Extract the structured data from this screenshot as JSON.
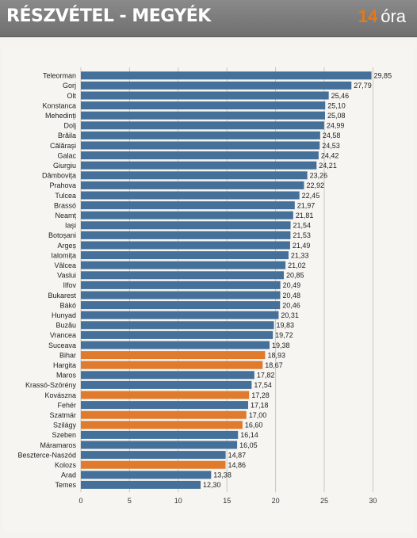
{
  "header": {
    "title": "RÉSZVÉTEL - MEGYÉK",
    "time_value": "14",
    "time_unit": "óra"
  },
  "colors": {
    "blue": "#44709a",
    "orange": "#e07a2c"
  },
  "chart_data": {
    "type": "bar",
    "orientation": "horizontal",
    "xlim": [
      0,
      30
    ],
    "xticks": [
      0,
      5,
      10,
      15,
      20,
      25,
      30
    ],
    "grid": true,
    "categories": [
      "Teleorman",
      "Gorj",
      "Olt",
      "Konstanca",
      "Mehedinți",
      "Dolj",
      "Brăila",
      "Călărași",
      "Galac",
      "Giurgiu",
      "Dâmbovița",
      "Prahova",
      "Tulcea",
      "Brassó",
      "Neamț",
      "Iași",
      "Botoșani",
      "Argeș",
      "Ialomița",
      "Vâlcea",
      "Vaslui",
      "Ilfov",
      "Bukarest",
      "Bákó",
      "Hunyad",
      "Buzău",
      "Vrancea",
      "Suceava",
      "Bihar",
      "Hargita",
      "Maros",
      "Krassó-Szörény",
      "Kovászna",
      "Fehér",
      "Szatmár",
      "Szilágy",
      "Szeben",
      "Máramaros",
      "Beszterce-Naszód",
      "Kolozs",
      "Arad",
      "Temes"
    ],
    "values": [
      29.85,
      27.79,
      25.46,
      25.1,
      25.08,
      24.99,
      24.58,
      24.53,
      24.42,
      24.21,
      23.26,
      22.92,
      22.45,
      21.97,
      21.81,
      21.54,
      21.53,
      21.49,
      21.33,
      21.02,
      20.85,
      20.49,
      20.48,
      20.46,
      20.31,
      19.83,
      19.72,
      19.38,
      18.93,
      18.67,
      17.82,
      17.54,
      17.28,
      17.18,
      17.0,
      16.6,
      16.14,
      16.05,
      14.87,
      14.86,
      13.38,
      12.3
    ],
    "labels": [
      "29,85",
      "27,79",
      "25,46",
      "25,10",
      "25,08",
      "24,99",
      "24,58",
      "24,53",
      "24,42",
      "24,21",
      "23,26",
      "22,92",
      "22,45",
      "21,97",
      "21,81",
      "21,54",
      "21,53",
      "21,49",
      "21,33",
      "21,02",
      "20,85",
      "20,49",
      "20,48",
      "20,46",
      "20,31",
      "19,83",
      "19,72",
      "19,38",
      "18,93",
      "18,67",
      "17,82",
      "17,54",
      "17,28",
      "17,18",
      "17,00",
      "16,60",
      "16,14",
      "16,05",
      "14,87",
      "14,86",
      "13,38",
      "12,30"
    ],
    "highlight": [
      false,
      false,
      false,
      false,
      false,
      false,
      false,
      false,
      false,
      false,
      false,
      false,
      false,
      false,
      false,
      false,
      false,
      false,
      false,
      false,
      false,
      false,
      false,
      false,
      false,
      false,
      false,
      false,
      true,
      true,
      false,
      false,
      true,
      false,
      true,
      true,
      false,
      false,
      false,
      true,
      false,
      false
    ]
  }
}
